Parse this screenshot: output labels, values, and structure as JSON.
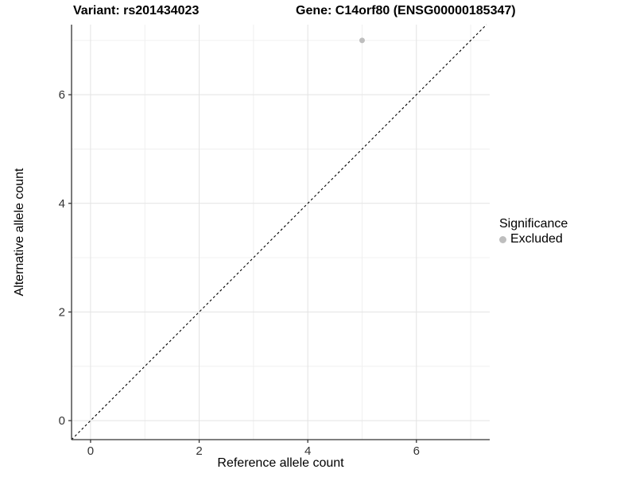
{
  "header": {
    "variant_title": "Variant: rs201434023",
    "gene_title": "Gene: C14orf80 (ENSG00000185347)"
  },
  "legend": {
    "title": "Significance",
    "items": [
      {
        "label": "Excluded",
        "color": "#bebebe"
      }
    ]
  },
  "chart_data": {
    "type": "scatter",
    "title": "",
    "xlabel": "Reference allele count",
    "ylabel": "Alternative allele count",
    "x_ticks": [
      0,
      2,
      4,
      6
    ],
    "y_ticks": [
      0,
      2,
      4,
      6
    ],
    "x_minor_ticks": [
      1,
      3,
      5,
      7
    ],
    "y_minor_ticks": [
      1,
      3,
      5,
      7
    ],
    "xlim": [
      -0.35,
      7.35
    ],
    "ylim": [
      -0.35,
      7.29
    ],
    "grid": "major+minor",
    "legend_position": "right",
    "series": [
      {
        "name": "Excluded",
        "color": "#bebebe",
        "points": [
          [
            5,
            7
          ]
        ]
      }
    ],
    "reference_line": {
      "kind": "identity y=x",
      "style": "dashed",
      "color": "#000000"
    },
    "colors": {
      "grid_major": "#e3e3e3",
      "grid_minor": "#f0f0f0",
      "axis": "#333333",
      "background": "#ffffff"
    }
  }
}
